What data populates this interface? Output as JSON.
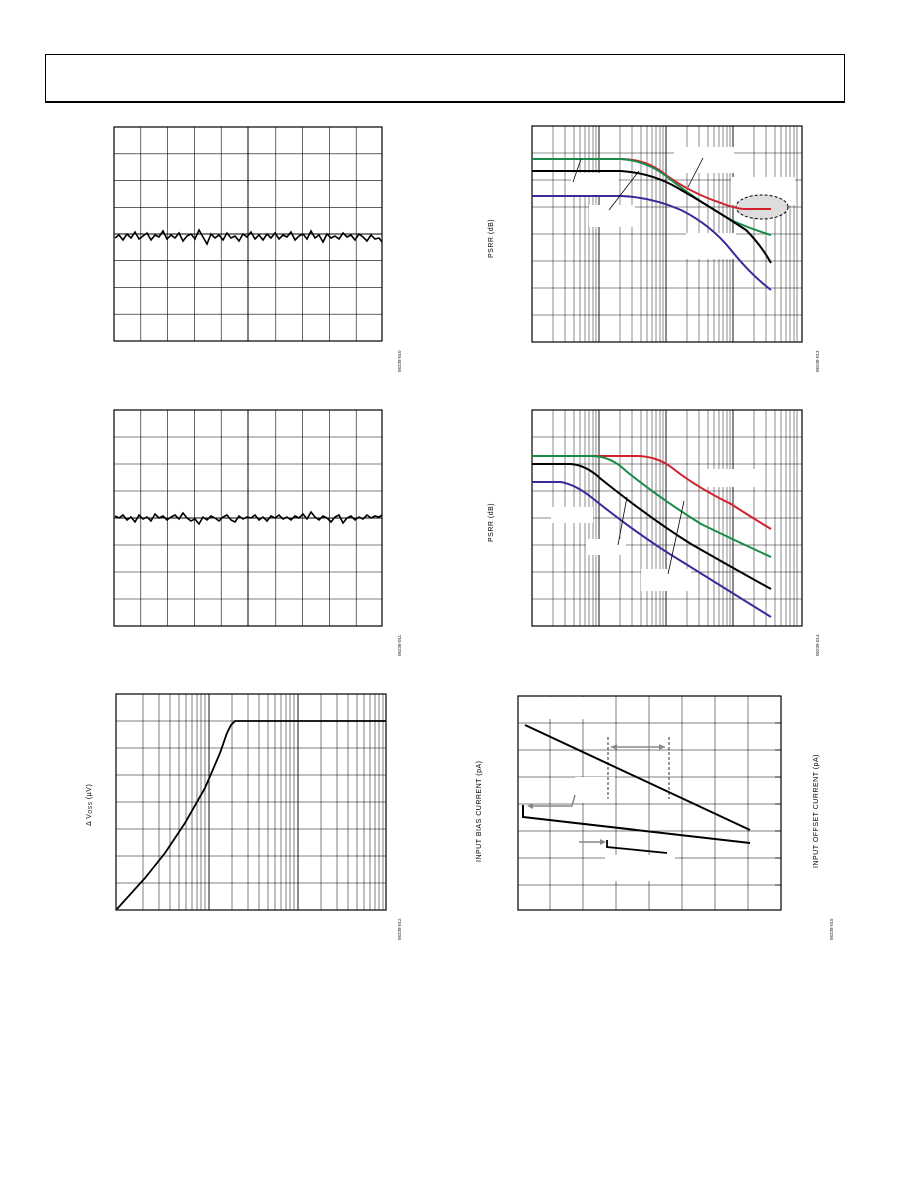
{
  "figures": {
    "psrr1": {
      "ylabel": "PSRR (dB)",
      "fig_id": "06238-013"
    },
    "psrr2": {
      "ylabel": "PSRR (dB)",
      "fig_id": "06238-014"
    },
    "vos": {
      "ylabel_prefix": "Δ V",
      "ylabel_sub": "OSS",
      "ylabel_unit": " (µV)",
      "fig_id": "06238-012"
    },
    "bias": {
      "ylabel_left": "INPUT BIAS CURRENT (pA)",
      "ylabel_right": "INPUT OFFSET CURRENT (pA)",
      "fig_id": "06238-015"
    },
    "noise1": {
      "fig_id": "06238-010"
    },
    "noise2": {
      "fig_id": "06238-011"
    }
  },
  "colors": {
    "red": "#d0202a",
    "green": "#1a8a4a",
    "purple": "#3a2a9a",
    "black": "#000000",
    "gray": "#888888"
  }
}
